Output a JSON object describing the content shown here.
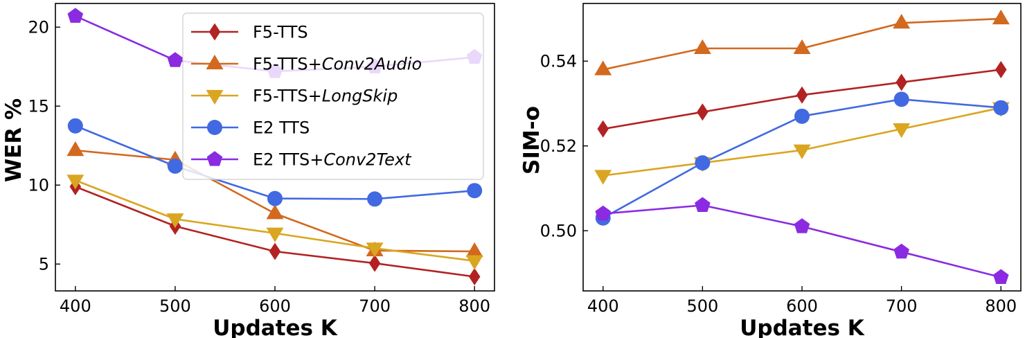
{
  "chart_data": [
    {
      "type": "line",
      "xlabel": "Updates K",
      "ylabel": "WER %",
      "x": [
        400,
        500,
        600,
        700,
        800
      ],
      "xticks": [
        "400",
        "500",
        "600",
        "700",
        "800"
      ],
      "yticks": [
        "5",
        "10",
        "15",
        "20"
      ],
      "xlim": [
        380,
        820
      ],
      "ylim": [
        3.3,
        21.5
      ],
      "grid": false,
      "legend": "top-right",
      "series": [
        {
          "name": "F5-TTS",
          "name_base": "F5-TTS",
          "name_suffix": "",
          "color": "#b22222",
          "marker": "diamond",
          "values": [
            9.9,
            7.4,
            5.8,
            5.05,
            4.2
          ]
        },
        {
          "name": "F5-TTS+Conv2Audio",
          "name_base": "F5-TTS+",
          "name_suffix": "Conv2Audio",
          "color": "#d2691e",
          "marker": "triangle-up",
          "values": [
            12.2,
            11.6,
            8.2,
            5.85,
            5.8
          ]
        },
        {
          "name": "F5-TTS+LongSkip",
          "name_base": "F5-TTS+",
          "name_suffix": "LongSkip",
          "color": "#daa520",
          "marker": "triangle-down",
          "values": [
            10.3,
            7.85,
            6.95,
            6.0,
            5.2
          ]
        },
        {
          "name": "E2 TTS",
          "name_base": "E2 TTS",
          "name_suffix": "",
          "color": "#4169e1",
          "marker": "circle",
          "values": [
            13.75,
            11.2,
            9.15,
            9.12,
            9.65
          ]
        },
        {
          "name": "E2 TTS+Conv2Text",
          "name_base": "E2 TTS+",
          "name_suffix": "Conv2Text",
          "color": "#8a2be2",
          "marker": "pentagon",
          "values": [
            20.7,
            17.9,
            17.2,
            17.5,
            18.1
          ]
        }
      ]
    },
    {
      "type": "line",
      "xlabel": "Updates K",
      "ylabel": "SIM-o",
      "x": [
        400,
        500,
        600,
        700,
        800
      ],
      "xticks": [
        "400",
        "500",
        "600",
        "700",
        "800"
      ],
      "yticks": [
        "0.50",
        "0.52",
        "0.54"
      ],
      "xlim": [
        380,
        820
      ],
      "ylim": [
        0.4858,
        0.5536
      ],
      "grid": false,
      "series": [
        {
          "name": "F5-TTS",
          "color": "#b22222",
          "marker": "diamond",
          "values": [
            0.524,
            0.528,
            0.532,
            0.535,
            0.538
          ]
        },
        {
          "name": "F5-TTS+Conv2Audio",
          "color": "#d2691e",
          "marker": "triangle-up",
          "values": [
            0.538,
            0.543,
            0.543,
            0.549,
            0.55
          ]
        },
        {
          "name": "F5-TTS+LongSkip",
          "color": "#daa520",
          "marker": "triangle-down",
          "values": [
            0.513,
            0.516,
            0.519,
            0.524,
            0.529
          ]
        },
        {
          "name": "E2 TTS",
          "color": "#4169e1",
          "marker": "circle",
          "values": [
            0.503,
            0.516,
            0.527,
            0.531,
            0.529
          ]
        },
        {
          "name": "E2 TTS+Conv2Text",
          "color": "#8a2be2",
          "marker": "pentagon",
          "values": [
            0.504,
            0.506,
            0.501,
            0.495,
            0.489
          ]
        }
      ]
    }
  ]
}
